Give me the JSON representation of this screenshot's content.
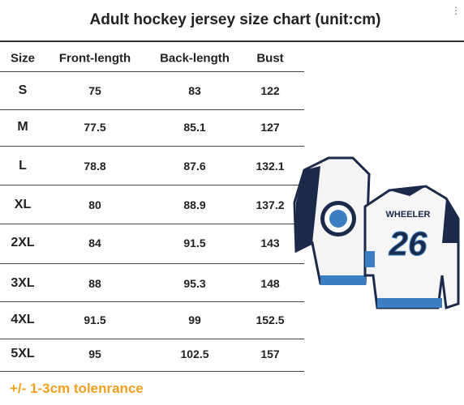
{
  "header": {
    "title": "Adult hockey jersey size chart (unit:cm)"
  },
  "table": {
    "columns": [
      "Size",
      "Front-length",
      "Back-length",
      "Bust"
    ],
    "rows": [
      [
        "S",
        75,
        83,
        122
      ],
      [
        "M",
        77.5,
        85.1,
        127
      ],
      [
        "L",
        78.8,
        87.6,
        132.1
      ],
      [
        "XL",
        80,
        88.9,
        137.2
      ],
      [
        "2XL",
        84,
        91.5,
        143
      ],
      [
        "3XL",
        88,
        95.3,
        148
      ],
      [
        "4XL",
        91.5,
        99,
        152.5
      ],
      [
        "5XL",
        95,
        102.5,
        157
      ]
    ]
  },
  "note": "+/- 1-3cm tolenrance",
  "jersey": {
    "name": "WHEELER",
    "number": "26"
  }
}
